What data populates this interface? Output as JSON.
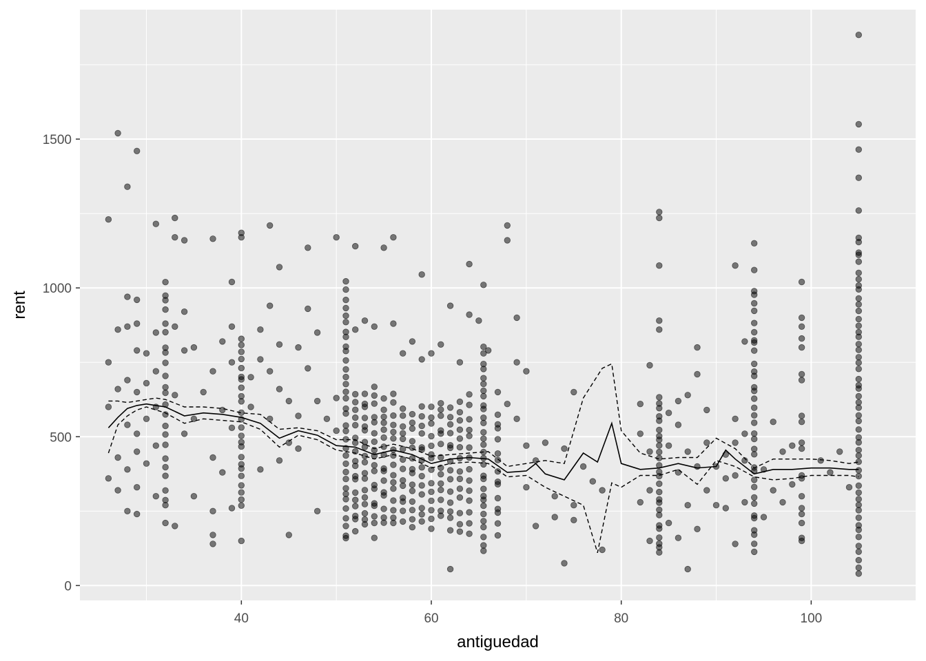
{
  "chart_data": {
    "type": "scatter",
    "title": "",
    "xlabel": "antiguedad",
    "ylabel": "rent",
    "xlim": [
      23,
      111
    ],
    "ylim": [
      -50,
      1935
    ],
    "x_ticks": [
      40,
      60,
      80,
      100
    ],
    "x_tick_labels": [
      "40",
      "60",
      "80",
      "100"
    ],
    "x_minor_ticks": [
      30,
      50,
      70,
      90
    ],
    "y_ticks": [
      0,
      500,
      1000,
      1500
    ],
    "y_tick_labels": [
      "0",
      "500",
      "1000",
      "1500"
    ],
    "y_minor_ticks": [
      250,
      750,
      1250,
      1750
    ],
    "grid": true,
    "legend": "none",
    "colors": {
      "panel": "#ebebeb",
      "grid": "#ffffff",
      "point": "#000000",
      "line": "#000000"
    },
    "points": [
      [
        26,
        1230
      ],
      [
        27,
        1520
      ],
      [
        28,
        1340
      ],
      [
        29,
        1460
      ],
      [
        31,
        1215
      ],
      [
        33,
        1235
      ],
      [
        33,
        1170
      ],
      [
        34,
        1160
      ],
      [
        37,
        1165
      ],
      [
        40,
        1185
      ],
      [
        40,
        1170
      ],
      [
        43,
        1210
      ],
      [
        47,
        1135
      ],
      [
        50,
        1170
      ],
      [
        52,
        1140
      ],
      [
        55,
        1135
      ],
      [
        56,
        1170
      ],
      [
        59,
        1045
      ],
      [
        64,
        1080
      ],
      [
        65.5,
        1010
      ],
      [
        68,
        1210
      ],
      [
        68,
        1160
      ],
      [
        74,
        75
      ],
      [
        62,
        55
      ],
      [
        87,
        55
      ],
      [
        84,
        1255
      ],
      [
        84,
        1235
      ],
      [
        84,
        1075
      ],
      [
        92,
        1075
      ],
      [
        94,
        1150
      ],
      [
        94,
        1060
      ],
      [
        99,
        1020
      ],
      [
        105,
        1850
      ],
      [
        105,
        1550
      ],
      [
        105,
        1465
      ],
      [
        105,
        1370
      ],
      [
        105,
        1260
      ],
      [
        105,
        40
      ],
      [
        105,
        60
      ],
      [
        105,
        85
      ],
      [
        26,
        750
      ],
      [
        26,
        600
      ],
      [
        26,
        360
      ],
      [
        27,
        860
      ],
      [
        27,
        660
      ],
      [
        27,
        430
      ],
      [
        27,
        320
      ],
      [
        28,
        970
      ],
      [
        28,
        870
      ],
      [
        28,
        690
      ],
      [
        28,
        540
      ],
      [
        28,
        390
      ],
      [
        28,
        250
      ],
      [
        29,
        960
      ],
      [
        29,
        880
      ],
      [
        29,
        790
      ],
      [
        29,
        650
      ],
      [
        29,
        510
      ],
      [
        29,
        450
      ],
      [
        29,
        330
      ],
      [
        29,
        240
      ],
      [
        30,
        780
      ],
      [
        30,
        680
      ],
      [
        30,
        560
      ],
      [
        30,
        410
      ],
      [
        31,
        850
      ],
      [
        31,
        720
      ],
      [
        31,
        600
      ],
      [
        31,
        470
      ],
      [
        31,
        300
      ],
      [
        33,
        870
      ],
      [
        33,
        640
      ],
      [
        33,
        200
      ],
      [
        34,
        920
      ],
      [
        34,
        790
      ],
      [
        34,
        510
      ],
      [
        35,
        800
      ],
      [
        35,
        560
      ],
      [
        35,
        300
      ],
      [
        36,
        650
      ],
      [
        37,
        720
      ],
      [
        37,
        430
      ],
      [
        37,
        250
      ],
      [
        37,
        170
      ],
      [
        37,
        140
      ],
      [
        38,
        820
      ],
      [
        38,
        590
      ],
      [
        38,
        380
      ],
      [
        39,
        1020
      ],
      [
        39,
        870
      ],
      [
        39,
        750
      ],
      [
        39,
        530
      ],
      [
        39,
        260
      ],
      [
        40,
        150
      ],
      [
        41,
        700
      ],
      [
        41,
        600
      ],
      [
        42,
        860
      ],
      [
        42,
        760
      ],
      [
        42,
        390
      ],
      [
        43,
        940
      ],
      [
        43,
        720
      ],
      [
        43,
        560
      ],
      [
        44,
        1070
      ],
      [
        44,
        810
      ],
      [
        44,
        660
      ],
      [
        44,
        420
      ],
      [
        45,
        620
      ],
      [
        45,
        480
      ],
      [
        45,
        170
      ],
      [
        46,
        800
      ],
      [
        46,
        570
      ],
      [
        46,
        460
      ],
      [
        47,
        930
      ],
      [
        47,
        730
      ],
      [
        48,
        850
      ],
      [
        48,
        620
      ],
      [
        48,
        250
      ],
      [
        49,
        560
      ],
      [
        50,
        630
      ],
      [
        50,
        520
      ],
      [
        52,
        860
      ],
      [
        53,
        890
      ],
      [
        54,
        870
      ],
      [
        56,
        880
      ],
      [
        57,
        780
      ],
      [
        58,
        820
      ],
      [
        59,
        760
      ],
      [
        60,
        780
      ],
      [
        61,
        810
      ],
      [
        62,
        940
      ],
      [
        63,
        750
      ],
      [
        64,
        910
      ],
      [
        65,
        890
      ],
      [
        66,
        790
      ],
      [
        67,
        650
      ],
      [
        68,
        610
      ],
      [
        69,
        900
      ],
      [
        69,
        750
      ],
      [
        69,
        560
      ],
      [
        70,
        720
      ],
      [
        70,
        470
      ],
      [
        70,
        330
      ],
      [
        71,
        200
      ],
      [
        71,
        420
      ],
      [
        72,
        480
      ],
      [
        73,
        230
      ],
      [
        73,
        300
      ],
      [
        74,
        460
      ],
      [
        75,
        650
      ],
      [
        75,
        270
      ],
      [
        75,
        220
      ],
      [
        76,
        400
      ],
      [
        77,
        350
      ],
      [
        78,
        320
      ],
      [
        78,
        120
      ],
      [
        82,
        610
      ],
      [
        82,
        510
      ],
      [
        82,
        280
      ],
      [
        83,
        740
      ],
      [
        83,
        450
      ],
      [
        83,
        320
      ],
      [
        83,
        150
      ],
      [
        84,
        890
      ],
      [
        84,
        860
      ],
      [
        85,
        580
      ],
      [
        85,
        470
      ],
      [
        85,
        210
      ],
      [
        86,
        620
      ],
      [
        86,
        540
      ],
      [
        86,
        380
      ],
      [
        86,
        160
      ],
      [
        87,
        640
      ],
      [
        87,
        450
      ],
      [
        87,
        270
      ],
      [
        88,
        800
      ],
      [
        88,
        710
      ],
      [
        88,
        400
      ],
      [
        88,
        190
      ],
      [
        89,
        590
      ],
      [
        89,
        480
      ],
      [
        89,
        320
      ],
      [
        90,
        400
      ],
      [
        90,
        270
      ],
      [
        91,
        440
      ],
      [
        91,
        360
      ],
      [
        91,
        260
      ],
      [
        92,
        560
      ],
      [
        92,
        480
      ],
      [
        92,
        370
      ],
      [
        92,
        140
      ],
      [
        93,
        820
      ],
      [
        93,
        510
      ],
      [
        93,
        420
      ],
      [
        93,
        280
      ],
      [
        95,
        390
      ],
      [
        95,
        230
      ],
      [
        96,
        550
      ],
      [
        96,
        320
      ],
      [
        97,
        450
      ],
      [
        97,
        280
      ],
      [
        98,
        470
      ],
      [
        98,
        340
      ],
      [
        99,
        900
      ],
      [
        99,
        870
      ],
      [
        99,
        830
      ],
      [
        99,
        800
      ],
      [
        99,
        710
      ],
      [
        99,
        690
      ],
      [
        99,
        570
      ],
      [
        99,
        550
      ],
      [
        99,
        480
      ],
      [
        99,
        460
      ],
      [
        99,
        370
      ],
      [
        99,
        360
      ],
      [
        99,
        300
      ],
      [
        99,
        260
      ],
      [
        99,
        240
      ],
      [
        99,
        210
      ],
      [
        99,
        160
      ],
      [
        99,
        150
      ],
      [
        101,
        420
      ],
      [
        102,
        380
      ],
      [
        103,
        450
      ],
      [
        104,
        330
      ]
    ],
    "dense_columns": [
      {
        "x": 32,
        "y_min": 210,
        "y_max": 1040,
        "n": 24
      },
      {
        "x": 40,
        "y_min": 250,
        "y_max": 850,
        "n": 24
      },
      {
        "x": 51,
        "y_min": 140,
        "y_max": 1030,
        "n": 34
      },
      {
        "x": 52,
        "y_min": 180,
        "y_max": 650,
        "n": 18
      },
      {
        "x": 53,
        "y_min": 190,
        "y_max": 660,
        "n": 18
      },
      {
        "x": 54,
        "y_min": 160,
        "y_max": 680,
        "n": 18
      },
      {
        "x": 55,
        "y_min": 200,
        "y_max": 640,
        "n": 16
      },
      {
        "x": 56,
        "y_min": 190,
        "y_max": 650,
        "n": 16
      },
      {
        "x": 57,
        "y_min": 200,
        "y_max": 620,
        "n": 14
      },
      {
        "x": 58,
        "y_min": 180,
        "y_max": 600,
        "n": 14
      },
      {
        "x": 59,
        "y_min": 200,
        "y_max": 610,
        "n": 14
      },
      {
        "x": 60,
        "y_min": 190,
        "y_max": 620,
        "n": 14
      },
      {
        "x": 61,
        "y_min": 210,
        "y_max": 640,
        "n": 14
      },
      {
        "x": 62,
        "y_min": 180,
        "y_max": 630,
        "n": 14
      },
      {
        "x": 63,
        "y_min": 170,
        "y_max": 640,
        "n": 14
      },
      {
        "x": 64,
        "y_min": 160,
        "y_max": 650,
        "n": 14
      },
      {
        "x": 65.5,
        "y_min": 110,
        "y_max": 810,
        "n": 30
      },
      {
        "x": 67,
        "y_min": 160,
        "y_max": 600,
        "n": 14
      },
      {
        "x": 84,
        "y_min": 95,
        "y_max": 650,
        "n": 26
      },
      {
        "x": 94,
        "y_min": 100,
        "y_max": 1010,
        "n": 34
      },
      {
        "x": 105,
        "y_min": 110,
        "y_max": 1185,
        "n": 48
      }
    ],
    "smooth": {
      "x": [
        26,
        27,
        28,
        29,
        30,
        31,
        32,
        34,
        36,
        38,
        40,
        42,
        44,
        46,
        48,
        50,
        52,
        54,
        56,
        58,
        60,
        62,
        64,
        66,
        68,
        70,
        71,
        72,
        74,
        76,
        77.5,
        79,
        80,
        82,
        84,
        86,
        88,
        90,
        91,
        92,
        94,
        96,
        98,
        100,
        102,
        104,
        105
      ],
      "y": [
        530,
        565,
        595,
        605,
        610,
        605,
        600,
        570,
        580,
        575,
        565,
        545,
        495,
        520,
        505,
        470,
        465,
        440,
        455,
        440,
        410,
        425,
        430,
        425,
        380,
        385,
        410,
        375,
        355,
        445,
        415,
        545,
        410,
        390,
        395,
        410,
        395,
        400,
        455,
        425,
        375,
        390,
        390,
        395,
        395,
        390,
        390
      ]
    },
    "upper_band": {
      "x": [
        26,
        27,
        28,
        29,
        30,
        31,
        32,
        34,
        36,
        38,
        40,
        42,
        44,
        46,
        48,
        50,
        52,
        54,
        56,
        58,
        60,
        62,
        64,
        66,
        68,
        70,
        72,
        74,
        76,
        78,
        79,
        80,
        82,
        84,
        86,
        88,
        90,
        92,
        94,
        96,
        98,
        100,
        102,
        104,
        105
      ],
      "y": [
        620,
        620,
        615,
        620,
        625,
        630,
        625,
        600,
        600,
        595,
        580,
        575,
        525,
        530,
        520,
        490,
        490,
        460,
        475,
        460,
        435,
        440,
        445,
        450,
        400,
        410,
        420,
        410,
        630,
        730,
        745,
        520,
        445,
        425,
        430,
        430,
        495,
        460,
        395,
        425,
        425,
        425,
        420,
        410,
        415
      ]
    },
    "lower_band": {
      "x": [
        26,
        27,
        28,
        29,
        30,
        31,
        32,
        34,
        36,
        38,
        40,
        42,
        44,
        46,
        48,
        50,
        52,
        54,
        56,
        58,
        60,
        62,
        64,
        66,
        68,
        70,
        72,
        74,
        76,
        77.5,
        79,
        80,
        82,
        84,
        86,
        88,
        90,
        92,
        94,
        96,
        98,
        100,
        102,
        104,
        105
      ],
      "y": [
        445,
        540,
        570,
        590,
        600,
        590,
        580,
        545,
        560,
        555,
        550,
        525,
        465,
        505,
        490,
        455,
        445,
        425,
        440,
        425,
        395,
        410,
        415,
        410,
        365,
        370,
        330,
        300,
        270,
        110,
        345,
        330,
        370,
        370,
        390,
        340,
        420,
        400,
        365,
        355,
        360,
        370,
        370,
        370,
        365
      ]
    }
  }
}
